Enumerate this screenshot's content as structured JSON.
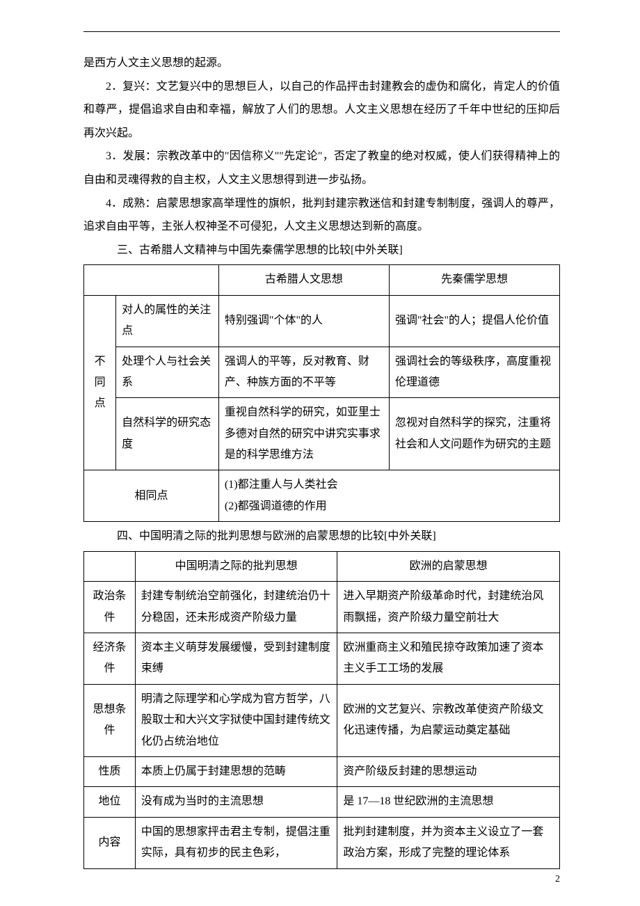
{
  "paragraphs": {
    "p0": "是西方人文主义思想的起源。",
    "p1": "2．复兴：文艺复兴中的思想巨人，以自己的作品抨击封建教会的虚伪和腐化，肯定人的价值和尊严，提倡追求自由和幸福，解放了人们的思想。人文主义思想在经历了千年中世纪的压抑后再次兴起。",
    "p2": "3．发展：宗教改革中的\"因信称义\"\"先定论\"，否定了教皇的绝对权威，使人们获得精神上的自由和灵魂得救的自主权，人文主义思想得到进一步弘扬。",
    "p3": "4．成熟：启蒙思想家高举理性的旗帜，批判封建宗教迷信和封建专制制度，强调人的尊严，追求自由平等，主张人权神圣不可侵犯，人文主义思想达到新的高度。"
  },
  "section3_title": "三、古希腊人文精神与中国先秦儒学思想的比较[中外关联]",
  "table1": {
    "header": {
      "blank": "",
      "col_a": "古希腊人文思想",
      "col_b": "先秦儒学思想"
    },
    "diff_label": "不同点",
    "rows": [
      {
        "aspect": "对人的属性的关注点",
        "a": "特别强调\"个体\"的人",
        "b": "强调\"社会\"的人；提倡人伦价值"
      },
      {
        "aspect": "处理个人与社会关系",
        "a": "强调人的平等，反对教育、财产、种族方面的不平等",
        "b": "强调社会的等级秩序，高度重视伦理道德"
      },
      {
        "aspect": "自然科学的研究态度",
        "a": "重视自然科学的研究，如亚里士多德对自然的研究中讲究实事求是的科学思维方法",
        "b": "忽视对自然科学的探究，注重将社会和人文问题作为研究的主题"
      }
    ],
    "same_label": "相同点",
    "same_text": "(1)都注重人与人类社会\n(2)都强调道德的作用"
  },
  "section4_title": "四、中国明清之际的批判思想与欧洲的启蒙思想的比较[中外关联]",
  "table2": {
    "header": {
      "blank": "",
      "col_a": "中国明清之际的批判思想",
      "col_b": "欧洲的启蒙思想"
    },
    "rows": [
      {
        "aspect": "政治条件",
        "a": "封建专制统治空前强化，封建统治仍十分稳固，还未形成资产阶级力量",
        "b": "进入早期资产阶级革命时代，封建统治风雨飘摇，资产阶级力量空前壮大"
      },
      {
        "aspect": "经济条件",
        "a": "资本主义萌芽发展缓慢，受到封建制度束缚",
        "b": "欧洲重商主义和殖民掠夺政策加速了资本主义手工工场的发展"
      },
      {
        "aspect": "思想条件",
        "a": "明清之际理学和心学成为官方哲学，八股取士和大兴文字狱使中国封建传统文化仍占统治地位",
        "b": "欧洲的文艺复兴、宗教改革使资产阶级文化迅速传播，为启蒙运动奠定基础"
      },
      {
        "aspect": "性质",
        "a": "本质上仍属于封建思想的范畴",
        "b": "资产阶级反封建的思想运动"
      },
      {
        "aspect": "地位",
        "a": "没有成为当时的主流思想",
        "b": "是 17—18 世纪欧洲的主流思想"
      },
      {
        "aspect": "内容",
        "a": "中国的思想家抨击君主专制，提倡注重实际，具有初步的民主色彩，",
        "b": "批判封建制度，并为资本主义设立了一套政治方案，形成了完整的理论体系"
      }
    ]
  },
  "page_number": "2"
}
